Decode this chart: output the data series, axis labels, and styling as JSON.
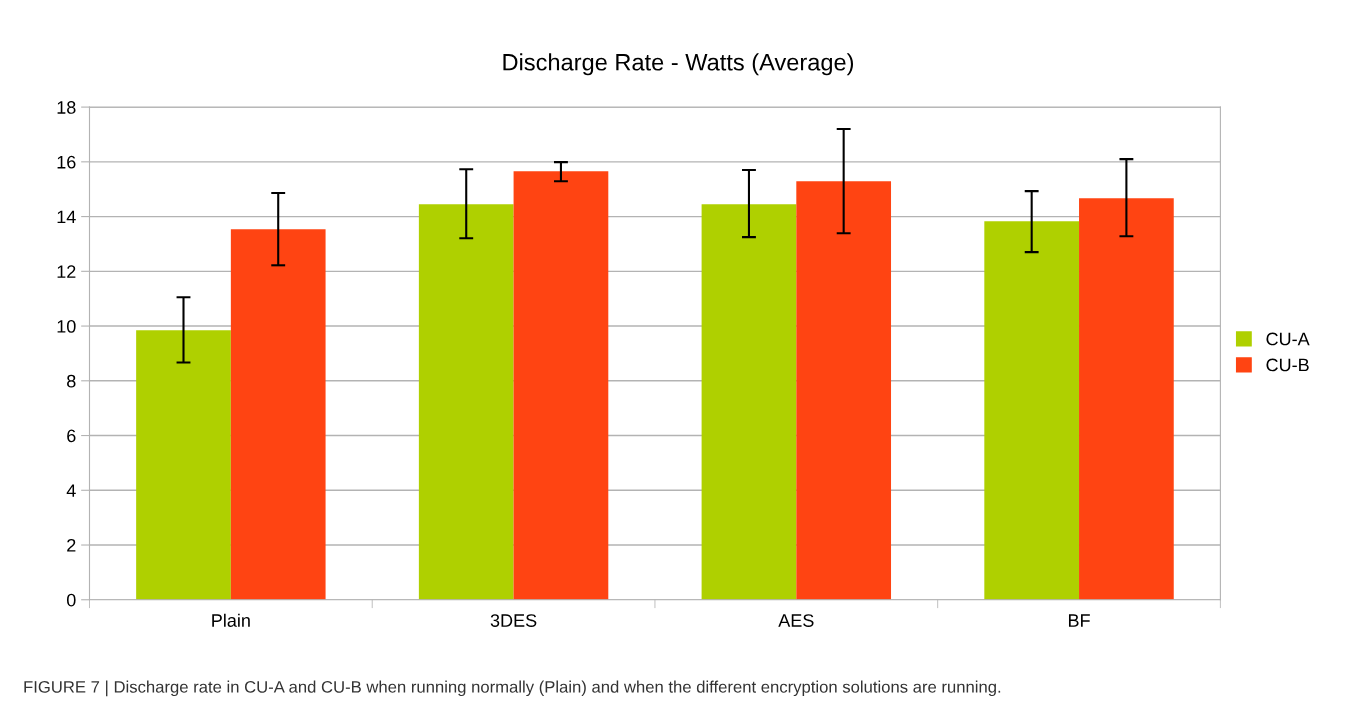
{
  "chart_data": {
    "type": "bar",
    "title": "Discharge Rate - Watts (Average)",
    "categories": [
      "Plain",
      "3DES",
      "AES",
      "BF"
    ],
    "series": [
      {
        "name": "CU-A",
        "color": "#afd000",
        "values": [
          9.85,
          14.45,
          14.45,
          13.83
        ],
        "errors": [
          [
            8.67,
            11.05
          ],
          [
            13.21,
            15.73
          ],
          [
            13.25,
            15.7
          ],
          [
            12.7,
            14.93
          ]
        ]
      },
      {
        "name": "CU-B",
        "color": "#ff4412",
        "values": [
          13.54,
          15.66,
          15.29,
          14.67
        ],
        "errors": [
          [
            12.22,
            14.86
          ],
          [
            15.29,
            15.99
          ],
          [
            13.39,
            17.2
          ],
          [
            13.28,
            16.1
          ]
        ]
      }
    ],
    "ylim": [
      0,
      18
    ],
    "yticks": [
      0,
      2,
      4,
      6,
      8,
      10,
      12,
      14,
      16,
      18
    ],
    "grid": "y",
    "legend": "right",
    "annotations": [
      "FIGURE 7 | Discharge rate in CU-A and CU-B when running normally (Plain) and when the different encryption solutions are running."
    ]
  }
}
